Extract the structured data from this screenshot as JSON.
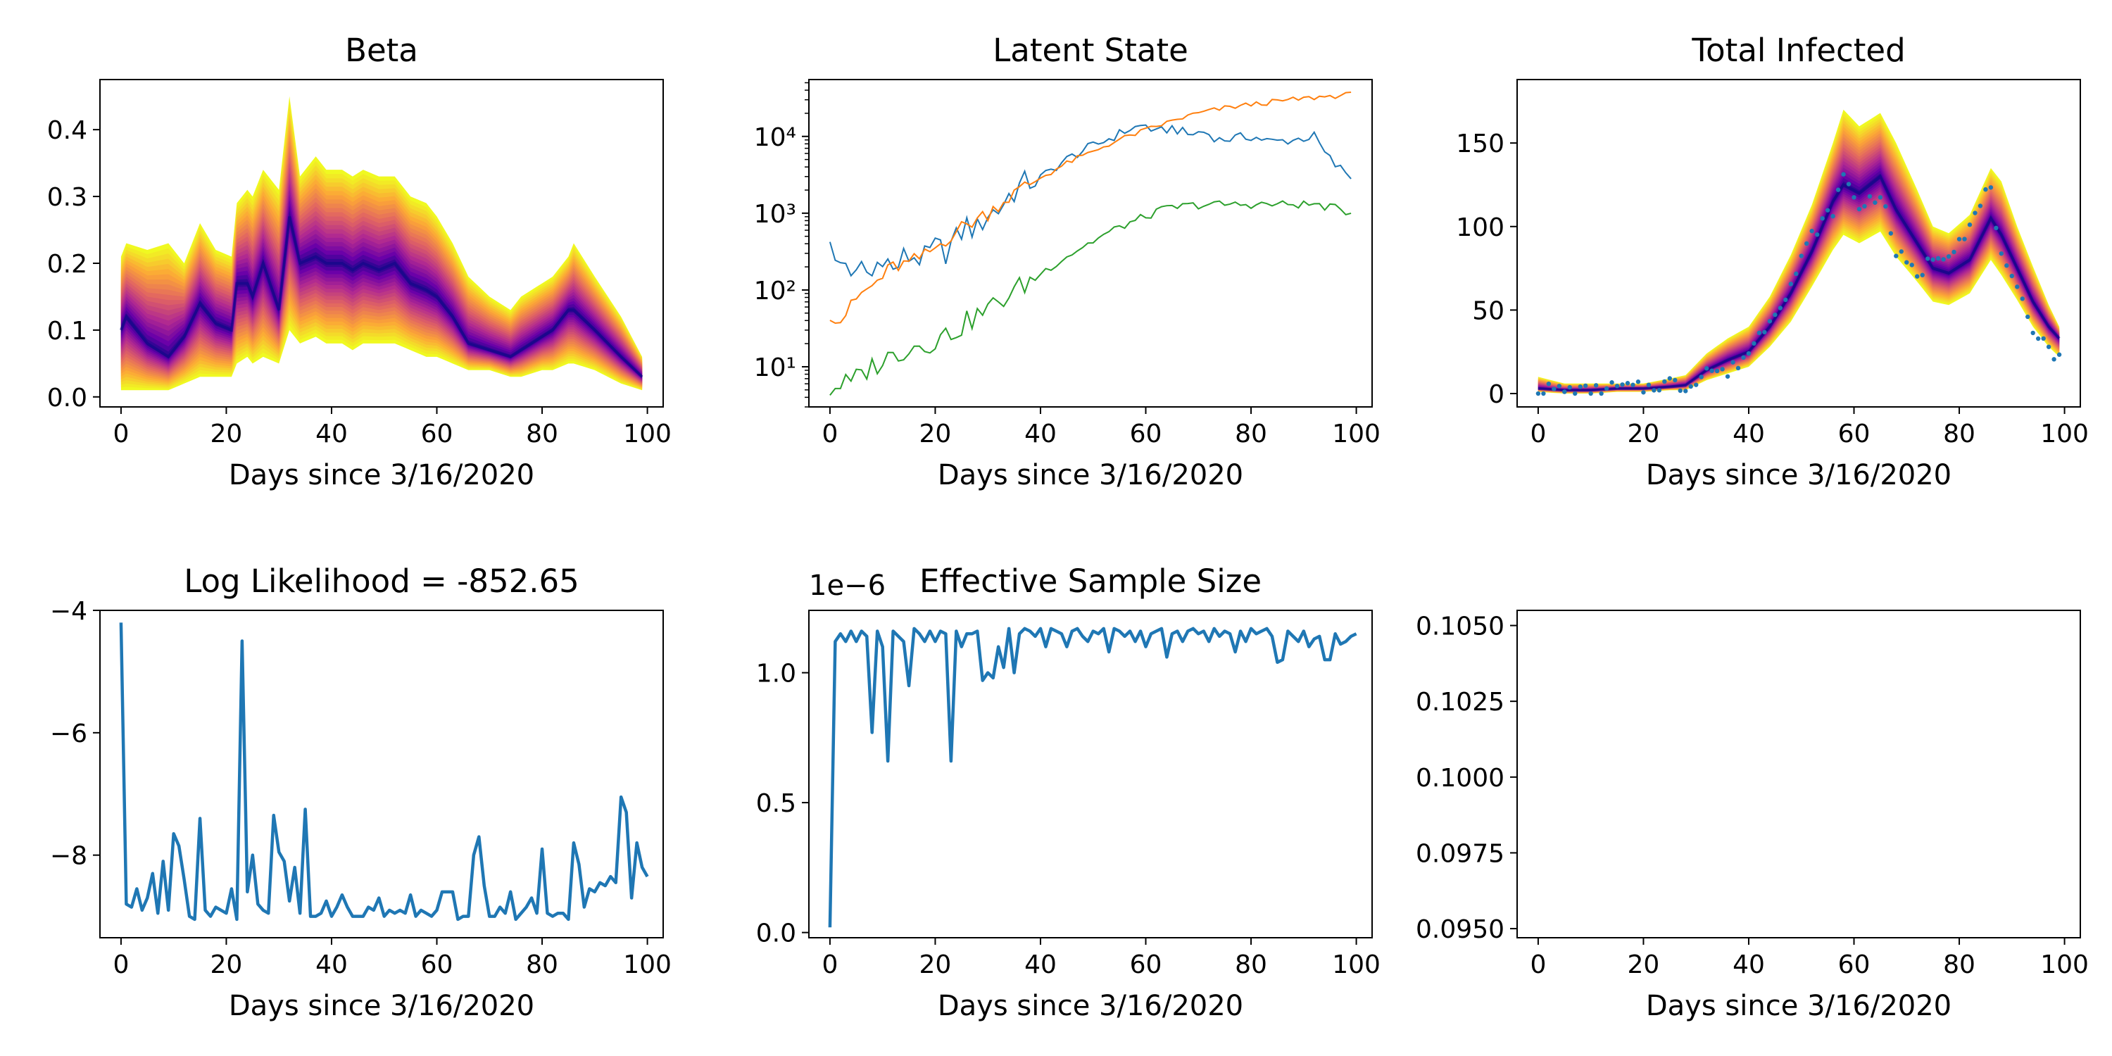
{
  "chart_data": [
    {
      "type": "area",
      "title": "Beta",
      "xlabel": "Days since 3/16/2020",
      "ylabel": "",
      "xlim": [
        -4,
        103
      ],
      "ylim": [
        -0.015,
        0.475
      ],
      "xticks": [
        "0",
        "20",
        "40",
        "60",
        "80",
        "100"
      ],
      "yticks": [
        "0.0",
        "0.1",
        "0.2",
        "0.3",
        "0.4"
      ],
      "colormap": [
        "#0d0887",
        "#6a00a8",
        "#b12a90",
        "#e16462",
        "#fca636",
        "#f0f921"
      ],
      "x_key": [
        0,
        1,
        5,
        9,
        12,
        15,
        18,
        21,
        22,
        24,
        25,
        27,
        30,
        32,
        34,
        37,
        39,
        42,
        44,
        46,
        49,
        52,
        55,
        58,
        60,
        63,
        66,
        70,
        74,
        76,
        80,
        82,
        85,
        86,
        90,
        95,
        99
      ],
      "median_key": [
        0.1,
        0.12,
        0.08,
        0.06,
        0.09,
        0.14,
        0.11,
        0.1,
        0.17,
        0.17,
        0.15,
        0.2,
        0.13,
        0.27,
        0.2,
        0.21,
        0.2,
        0.2,
        0.19,
        0.2,
        0.19,
        0.2,
        0.17,
        0.16,
        0.15,
        0.12,
        0.08,
        0.07,
        0.06,
        0.07,
        0.09,
        0.1,
        0.13,
        0.13,
        0.1,
        0.06,
        0.03
      ],
      "upper_key": [
        0.21,
        0.23,
        0.22,
        0.23,
        0.2,
        0.26,
        0.22,
        0.21,
        0.29,
        0.31,
        0.3,
        0.34,
        0.31,
        0.45,
        0.33,
        0.36,
        0.34,
        0.34,
        0.33,
        0.34,
        0.33,
        0.33,
        0.3,
        0.29,
        0.27,
        0.23,
        0.18,
        0.15,
        0.13,
        0.15,
        0.17,
        0.18,
        0.21,
        0.23,
        0.18,
        0.12,
        0.06
      ],
      "lower_key": [
        0.01,
        0.01,
        0.01,
        0.01,
        0.02,
        0.03,
        0.03,
        0.03,
        0.05,
        0.06,
        0.05,
        0.06,
        0.05,
        0.1,
        0.08,
        0.09,
        0.08,
        0.08,
        0.07,
        0.08,
        0.08,
        0.08,
        0.07,
        0.06,
        0.06,
        0.05,
        0.04,
        0.04,
        0.03,
        0.03,
        0.04,
        0.04,
        0.05,
        0.05,
        0.04,
        0.02,
        0.01
      ]
    },
    {
      "type": "line",
      "title": "Latent State",
      "xlabel": "Days since 3/16/2020",
      "ylabel": "",
      "yscale": "log",
      "xlim": [
        -4,
        103
      ],
      "ylim": [
        3,
        55000
      ],
      "xticks": [
        "0",
        "20",
        "40",
        "60",
        "80",
        "100"
      ],
      "yticks": [
        {
          "value": 10,
          "label": "10¹"
        },
        {
          "value": 100,
          "label": "10²"
        },
        {
          "value": 1000,
          "label": "10³"
        },
        {
          "value": 10000,
          "label": "10⁴"
        }
      ],
      "series": [
        {
          "color": "#1f77b4",
          "x_key": [
            0,
            1,
            3,
            5,
            6,
            8,
            10,
            12,
            14,
            16,
            18,
            20,
            22,
            24,
            26,
            28,
            30,
            32,
            34,
            36,
            38,
            40,
            42,
            45,
            48,
            51,
            54,
            57,
            60,
            62,
            65,
            68,
            71,
            74,
            77,
            80,
            84,
            88,
            92,
            94,
            96,
            99
          ],
          "values_key": [
            550,
            200,
            230,
            140,
            190,
            150,
            300,
            170,
            260,
            280,
            250,
            350,
            320,
            450,
            700,
            600,
            1000,
            1100,
            1700,
            2200,
            2600,
            2900,
            3600,
            5000,
            6500,
            8000,
            10000,
            12500,
            14000,
            11000,
            13000,
            10500,
            11500,
            9000,
            9500,
            10000,
            8500,
            9000,
            10000,
            6000,
            4200,
            3000
          ],
          "jitter": 0.18
        },
        {
          "color": "#ff7f0e",
          "x_key": [
            0,
            2,
            4,
            6,
            8,
            10,
            12,
            15,
            18,
            20,
            22,
            24,
            26,
            30,
            34,
            38,
            42,
            46,
            50,
            55,
            60,
            64,
            70,
            76,
            82,
            88,
            94,
            99
          ],
          "values_key": [
            50,
            40,
            60,
            90,
            110,
            150,
            200,
            220,
            280,
            350,
            450,
            600,
            700,
            1000,
            1600,
            2400,
            3400,
            4800,
            6300,
            9000,
            12000,
            15000,
            20000,
            24000,
            27000,
            30000,
            33000,
            35000
          ],
          "jitter": 0.1
        },
        {
          "color": "#2ca02c",
          "x_key": [
            0,
            2,
            4,
            6,
            8,
            10,
            12,
            15,
            18,
            20,
            22,
            24,
            26,
            30,
            34,
            38,
            42,
            46,
            50,
            55,
            60,
            64,
            68,
            72,
            76,
            80,
            84,
            88,
            92,
            96,
            99
          ],
          "values_key": [
            5,
            6,
            6,
            8,
            10,
            12,
            14,
            18,
            20,
            22,
            26,
            30,
            38,
            55,
            85,
            130,
            200,
            300,
            430,
            650,
            900,
            1150,
            1250,
            1300,
            1300,
            1300,
            1300,
            1300,
            1300,
            1150,
            1000
          ],
          "jitter": 0.15
        }
      ]
    },
    {
      "type": "area",
      "title": "Total Infected",
      "xlabel": "Days since 3/16/2020",
      "ylabel": "",
      "xlim": [
        -4,
        103
      ],
      "ylim": [
        -8,
        188
      ],
      "xticks": [
        "0",
        "20",
        "40",
        "60",
        "80",
        "100"
      ],
      "yticks": [
        "0",
        "50",
        "100",
        "150"
      ],
      "colormap": [
        "#0d0887",
        "#6a00a8",
        "#b12a90",
        "#e16462",
        "#fca636",
        "#f0f921"
      ],
      "x_key": [
        0,
        5,
        10,
        15,
        20,
        25,
        28,
        32,
        36,
        40,
        44,
        48,
        52,
        56,
        58,
        61,
        65,
        68,
        72,
        75,
        78,
        82,
        86,
        88,
        91,
        94,
        97,
        99
      ],
      "median_key": [
        3,
        2,
        2,
        3,
        3,
        4,
        5,
        14,
        20,
        25,
        40,
        60,
        85,
        115,
        125,
        120,
        130,
        110,
        90,
        75,
        72,
        80,
        105,
        95,
        75,
        55,
        40,
        33
      ],
      "upper_key": [
        10,
        6,
        6,
        6,
        6,
        9,
        11,
        24,
        33,
        40,
        58,
        83,
        113,
        150,
        170,
        160,
        168,
        150,
        122,
        100,
        96,
        107,
        135,
        127,
        100,
        76,
        53,
        40
      ],
      "lower_key": [
        1,
        0,
        0,
        1,
        1,
        2,
        2,
        8,
        12,
        16,
        28,
        43,
        64,
        86,
        95,
        90,
        97,
        82,
        67,
        55,
        53,
        60,
        80,
        71,
        56,
        40,
        28,
        22
      ],
      "observed_key": [
        3,
        2,
        1,
        4,
        3,
        7,
        3,
        15,
        12,
        25,
        45,
        65,
        95,
        110,
        130,
        112,
        120,
        85,
        70,
        82,
        85,
        100,
        125,
        80,
        60,
        40,
        28,
        20
      ]
    },
    {
      "type": "line",
      "title": "Log Likelihood = -852.65",
      "xlabel": "Days since 3/16/2020",
      "ylabel": "",
      "xlim": [
        -4,
        103
      ],
      "ylim": [
        -9.35,
        -4.0
      ],
      "xticks": [
        "0",
        "20",
        "40",
        "60",
        "80",
        "100"
      ],
      "yticks": [
        {
          "value": -4,
          "label": "−4"
        },
        {
          "value": -6,
          "label": "−6"
        },
        {
          "value": -8,
          "label": "−8"
        }
      ],
      "color": "#1f77b4",
      "values": [
        -4.2,
        -8.8,
        -8.85,
        -8.55,
        -8.9,
        -8.7,
        -8.3,
        -8.95,
        -8.1,
        -8.9,
        -7.65,
        -7.85,
        -8.4,
        -9.0,
        -9.05,
        -7.4,
        -8.9,
        -9.0,
        -8.85,
        -8.9,
        -8.95,
        -8.55,
        -9.05,
        -4.5,
        -8.6,
        -8.0,
        -8.8,
        -8.9,
        -8.95,
        -7.35,
        -7.95,
        -8.1,
        -8.75,
        -8.2,
        -8.95,
        -7.25,
        -9.0,
        -9.0,
        -8.95,
        -8.75,
        -9.0,
        -8.85,
        -8.65,
        -8.85,
        -9.0,
        -9.0,
        -9.0,
        -8.85,
        -8.9,
        -8.7,
        -9.0,
        -8.9,
        -8.95,
        -8.9,
        -8.95,
        -8.65,
        -9.0,
        -8.9,
        -8.95,
        -9.0,
        -8.9,
        -8.6,
        -8.6,
        -8.6,
        -9.05,
        -9.0,
        -9.0,
        -8.0,
        -7.7,
        -8.5,
        -9.0,
        -9.0,
        -8.85,
        -8.95,
        -8.6,
        -9.05,
        -8.95,
        -8.85,
        -8.7,
        -8.95,
        -7.9,
        -8.95,
        -9.0,
        -8.95,
        -8.95,
        -9.05,
        -7.8,
        -8.15,
        -8.85,
        -8.55,
        -8.6,
        -8.45,
        -8.5,
        -8.35,
        -8.45,
        -7.05,
        -7.3,
        -8.7,
        -7.8,
        -8.2,
        -8.35
      ]
    },
    {
      "type": "line",
      "title": "Effective Sample Size",
      "xlabel": "Days since 3/16/2020",
      "ylabel": "",
      "scale_label": "1e−6",
      "xlim": [
        -4,
        103
      ],
      "ylim": [
        -0.02,
        1.24
      ],
      "xticks": [
        "0",
        "20",
        "40",
        "60",
        "80",
        "100"
      ],
      "yticks": [
        "0.0",
        "0.5",
        "1.0"
      ],
      "color": "#1f77b4",
      "values": [
        0.02,
        1.12,
        1.15,
        1.12,
        1.16,
        1.12,
        1.16,
        1.14,
        0.77,
        1.16,
        1.1,
        0.66,
        1.16,
        1.14,
        1.12,
        0.95,
        1.17,
        1.15,
        1.12,
        1.16,
        1.12,
        1.16,
        1.15,
        0.66,
        1.16,
        1.1,
        1.15,
        1.15,
        1.16,
        0.97,
        1.0,
        0.98,
        1.1,
        1.02,
        1.17,
        1.0,
        1.15,
        1.17,
        1.16,
        1.14,
        1.17,
        1.1,
        1.17,
        1.16,
        1.15,
        1.1,
        1.16,
        1.17,
        1.14,
        1.12,
        1.16,
        1.15,
        1.17,
        1.08,
        1.17,
        1.16,
        1.14,
        1.16,
        1.12,
        1.16,
        1.1,
        1.15,
        1.16,
        1.17,
        1.06,
        1.15,
        1.16,
        1.12,
        1.16,
        1.17,
        1.15,
        1.16,
        1.12,
        1.17,
        1.14,
        1.16,
        1.15,
        1.08,
        1.16,
        1.12,
        1.17,
        1.15,
        1.16,
        1.17,
        1.14,
        1.04,
        1.05,
        1.16,
        1.14,
        1.12,
        1.16,
        1.1,
        1.13,
        1.14,
        1.05,
        1.05,
        1.15,
        1.11,
        1.12,
        1.14,
        1.15
      ]
    },
    {
      "type": "line",
      "title": "",
      "xlabel": "Days since 3/16/2020",
      "ylabel": "",
      "xlim": [
        -4,
        103
      ],
      "ylim": [
        0.0947,
        0.1055
      ],
      "xticks": [
        "0",
        "20",
        "40",
        "60",
        "80",
        "100"
      ],
      "yticks": [
        "0.0950",
        "0.0975",
        "0.1000",
        "0.1025",
        "0.1050"
      ],
      "values": []
    }
  ]
}
